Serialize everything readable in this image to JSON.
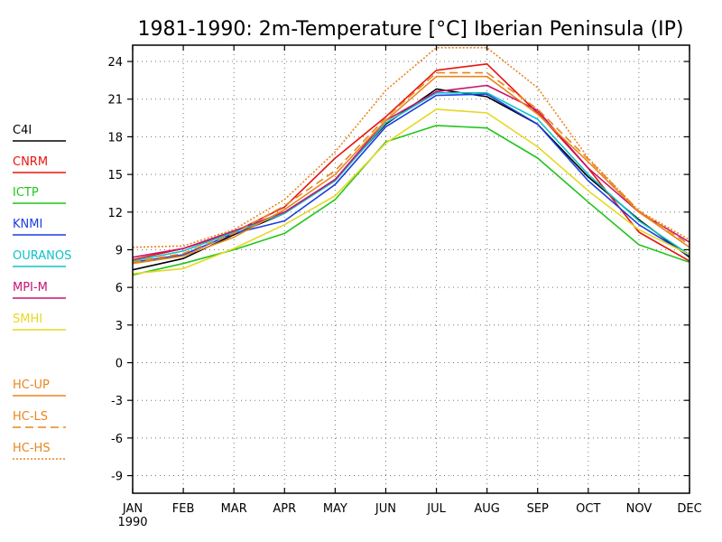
{
  "chart_data": {
    "type": "line",
    "title": "1981-1990: 2m-Temperature [°C] Iberian Peninsula (IP)",
    "xlabel": "",
    "ylabel": "",
    "categories": [
      "JAN",
      "FEB",
      "MAR",
      "APR",
      "MAY",
      "JUN",
      "JUL",
      "AUG",
      "SEP",
      "OCT",
      "NOV",
      "DEC"
    ],
    "x_sub_label": "1990",
    "ylim": [
      -10.4,
      25.3
    ],
    "yticks": [
      -9,
      -6,
      -3,
      0,
      3,
      6,
      9,
      12,
      15,
      18,
      21,
      24
    ],
    "grid": true,
    "legend_position": "left",
    "series": [
      {
        "name": "C4I",
        "color": "#000000",
        "dash": "solid",
        "values": [
          7.4,
          8.3,
          10.2,
          11.9,
          14.6,
          19.0,
          21.8,
          21.2,
          19.0,
          14.8,
          11.4,
          8.4
        ]
      },
      {
        "name": "CNRM",
        "color": "#e8140e",
        "dash": "solid",
        "values": [
          8.2,
          9.1,
          10.4,
          12.4,
          16.3,
          19.6,
          23.3,
          23.8,
          19.9,
          15.5,
          10.4,
          8.1
        ]
      },
      {
        "name": "ICTP",
        "color": "#22c41c",
        "dash": "solid",
        "values": [
          7.0,
          7.9,
          9.0,
          10.3,
          13.0,
          17.6,
          18.9,
          18.7,
          16.3,
          12.8,
          9.4,
          8.0
        ]
      },
      {
        "name": "KNMI",
        "color": "#1b3ee0",
        "dash": "solid",
        "values": [
          8.0,
          8.6,
          10.3,
          11.3,
          14.2,
          18.8,
          21.3,
          21.4,
          19.0,
          14.5,
          11.0,
          8.5
        ]
      },
      {
        "name": "OURANOS",
        "color": "#10c2c7",
        "dash": "solid",
        "values": [
          8.1,
          8.9,
          10.4,
          11.9,
          14.5,
          19.1,
          21.5,
          21.5,
          19.4,
          15.0,
          11.3,
          8.6
        ]
      },
      {
        "name": "MPI-M",
        "color": "#c8126e",
        "dash": "solid",
        "values": [
          8.4,
          9.1,
          10.5,
          12.0,
          14.6,
          19.3,
          21.6,
          22.1,
          20.1,
          15.5,
          12.0,
          9.6
        ]
      },
      {
        "name": "SMHI",
        "color": "#e6d823",
        "dash": "solid",
        "values": [
          7.1,
          7.5,
          9.1,
          11.0,
          13.3,
          17.5,
          20.2,
          19.9,
          17.2,
          13.7,
          10.6,
          8.6
        ]
      },
      {
        "name": "HC-UP",
        "color": "#e8861e",
        "dash": "solid",
        "values": [
          7.9,
          8.5,
          10.0,
          12.2,
          15.0,
          19.3,
          22.8,
          22.8,
          19.8,
          16.0,
          12.0,
          9.2
        ]
      },
      {
        "name": "HC-LS",
        "color": "#e8861e",
        "dash": "longdash",
        "values": [
          8.0,
          8.7,
          10.3,
          12.5,
          15.3,
          19.5,
          23.1,
          23.1,
          20.2,
          16.2,
          12.1,
          9.4
        ]
      },
      {
        "name": "HC-HS",
        "color": "#e8861e",
        "dash": "dotted",
        "values": [
          9.2,
          9.3,
          10.6,
          13.0,
          16.8,
          21.7,
          25.1,
          25.1,
          21.9,
          16.3,
          12.1,
          9.8
        ]
      }
    ]
  }
}
